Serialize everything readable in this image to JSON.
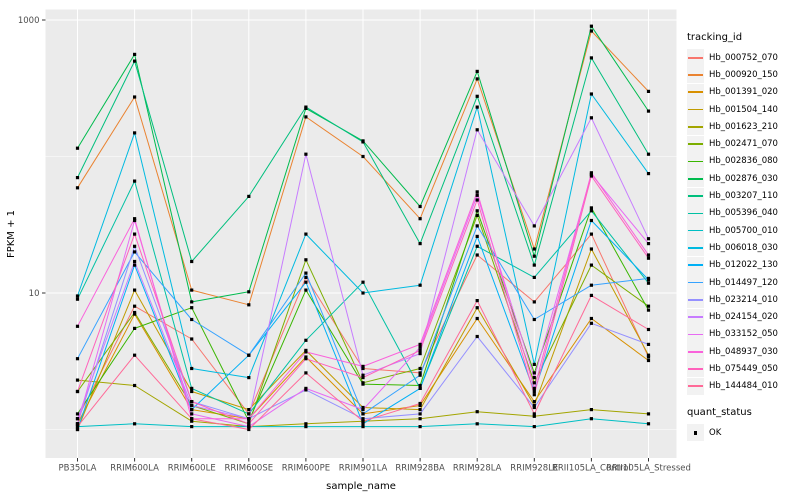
{
  "chart_data": {
    "type": "line",
    "title": "",
    "xlabel": "sample_name",
    "ylabel": "FPKM + 1",
    "x_categories": [
      "PB350LA",
      "RRIM600LA",
      "RRIM600LE",
      "RRIM600SE",
      "RRIM600PE",
      "RRIM901LA",
      "RRIM928BA",
      "RRIM928LA",
      "RRIM928LE",
      "RRII105LA_Control",
      "RRII105LA_Stressed"
    ],
    "y_scale": "log10",
    "ylim": [
      0.62,
      1190
    ],
    "y_ticks": [
      {
        "value": 1000,
        "label": "1000"
      },
      {
        "value": 10,
        "label": "10"
      }
    ],
    "y_minor": [
      100,
      1
    ],
    "grid": "on",
    "legend_position": "right",
    "marker": "black-square",
    "series": [
      {
        "name": "Hb_000752_070",
        "color": "#F8766D",
        "values": [
          1.2,
          8.0,
          4.6,
          1.3,
          13,
          2.8,
          2.6,
          19,
          8.6,
          27,
          3.4
        ]
      },
      {
        "name": "Hb_000920_150",
        "color": "#EA8331",
        "values": [
          59,
          273,
          10.5,
          8.2,
          195,
          100,
          35,
          370,
          21,
          830,
          300
        ]
      },
      {
        "name": "Hb_001391_020",
        "color": "#D89000",
        "values": [
          1.1,
          7.0,
          1.4,
          1.2,
          3.4,
          1.3,
          1.5,
          6.5,
          1.6,
          6.5,
          3.2
        ]
      },
      {
        "name": "Hb_001504_140",
        "color": "#C09B00",
        "values": [
          1.0,
          10.5,
          1.9,
          1.4,
          3.8,
          1.45,
          1.4,
          7.8,
          1.5,
          21,
          3.5
        ]
      },
      {
        "name": "Hb_001623_210",
        "color": "#A3A500",
        "values": [
          2.3,
          2.1,
          1.15,
          1.05,
          1.1,
          1.15,
          1.2,
          1.35,
          1.25,
          1.4,
          1.3
        ]
      },
      {
        "name": "Hb_002471_070",
        "color": "#7CAE00",
        "values": [
          1.9,
          7.2,
          1.5,
          1.1,
          17.5,
          2.2,
          2.8,
          37,
          2.2,
          16,
          8.0
        ]
      },
      {
        "name": "Hb_002836_080",
        "color": "#39B600",
        "values": [
          1.3,
          5.5,
          7.8,
          1.15,
          10.5,
          2.15,
          2.1,
          40,
          2.6,
          42,
          7.5
        ]
      },
      {
        "name": "Hb_002876_030",
        "color": "#00BB4E",
        "values": [
          115,
          560,
          8.6,
          10.2,
          225,
          130,
          43,
          420,
          18.6,
          900,
          215
        ]
      },
      {
        "name": "Hb_003207_110",
        "color": "#00BF7D",
        "values": [
          70,
          500,
          17,
          51,
          230,
          128,
          23,
          276,
          16,
          528,
          104
        ]
      },
      {
        "name": "Hb_005396_040",
        "color": "#00C1A3",
        "values": [
          9.0,
          66,
          2.0,
          1.3,
          4.5,
          12,
          2.0,
          22,
          13,
          40,
          11.8
        ]
      },
      {
        "name": "Hb_005700_010",
        "color": "#00BFC4",
        "values": [
          1.05,
          1.1,
          1.05,
          1.05,
          1.05,
          1.05,
          1.05,
          1.1,
          1.05,
          1.2,
          1.1
        ]
      },
      {
        "name": "Hb_006018_030",
        "color": "#00BAE0",
        "values": [
          9.5,
          149,
          2.8,
          2.4,
          27,
          10,
          11.4,
          230,
          3.0,
          287,
          75
        ]
      },
      {
        "name": "Hb_012022_130",
        "color": "#00B0F6",
        "values": [
          1.0,
          16,
          1.4,
          3.5,
          12,
          1.1,
          2.0,
          26,
          1.9,
          34,
          12.5
        ]
      },
      {
        "name": "Hb_014497_120",
        "color": "#35A2FF",
        "values": [
          3.3,
          20,
          6.4,
          3.5,
          14,
          1.3,
          2.5,
          31,
          6.4,
          11.4,
          12.8
        ]
      },
      {
        "name": "Hb_023214_010",
        "color": "#9590FF",
        "values": [
          1.1,
          22,
          1.6,
          1.2,
          1.95,
          1.2,
          1.3,
          4.8,
          1.45,
          6.0,
          4.2
        ]
      },
      {
        "name": "Hb_024154_020",
        "color": "#C77CFF",
        "values": [
          1.2,
          17,
          1.5,
          1.2,
          104,
          2.5,
          3.6,
          157,
          31,
          192,
          25
        ]
      },
      {
        "name": "Hb_033152_050",
        "color": "#E76BF3",
        "values": [
          1.1,
          34,
          1.3,
          1.05,
          2.0,
          1.4,
          4.0,
          52,
          2.4,
          74,
          23
        ]
      },
      {
        "name": "Hb_048937_030",
        "color": "#FA62DB",
        "values": [
          5.7,
          35,
          1.2,
          1.2,
          3.7,
          2.9,
          4.2,
          55,
          2.0,
          76,
          19
        ]
      },
      {
        "name": "Hb_075449_050",
        "color": "#FF62BC",
        "values": [
          1.9,
          27,
          1.6,
          1.1,
          3.3,
          2.4,
          3.8,
          48,
          1.8,
          72,
          18
        ]
      },
      {
        "name": "Hb_144484_010",
        "color": "#FF6A98",
        "values": [
          1.05,
          3.5,
          1.2,
          1.0,
          2.6,
          1.15,
          1.55,
          8.8,
          1.3,
          9.6,
          5.4
        ]
      }
    ]
  },
  "legend": {
    "tracking_title": "tracking_id",
    "quant_title": "quant_status",
    "quant_items": [
      "OK"
    ]
  },
  "style": {
    "panel_bg": "#EBEBEB",
    "grid_color": "#FFFFFF",
    "point_color": "#000000",
    "axis_text": "#4D4D4D",
    "tick_color": "#333333",
    "legend_key_bg": "#F2F2F2"
  }
}
